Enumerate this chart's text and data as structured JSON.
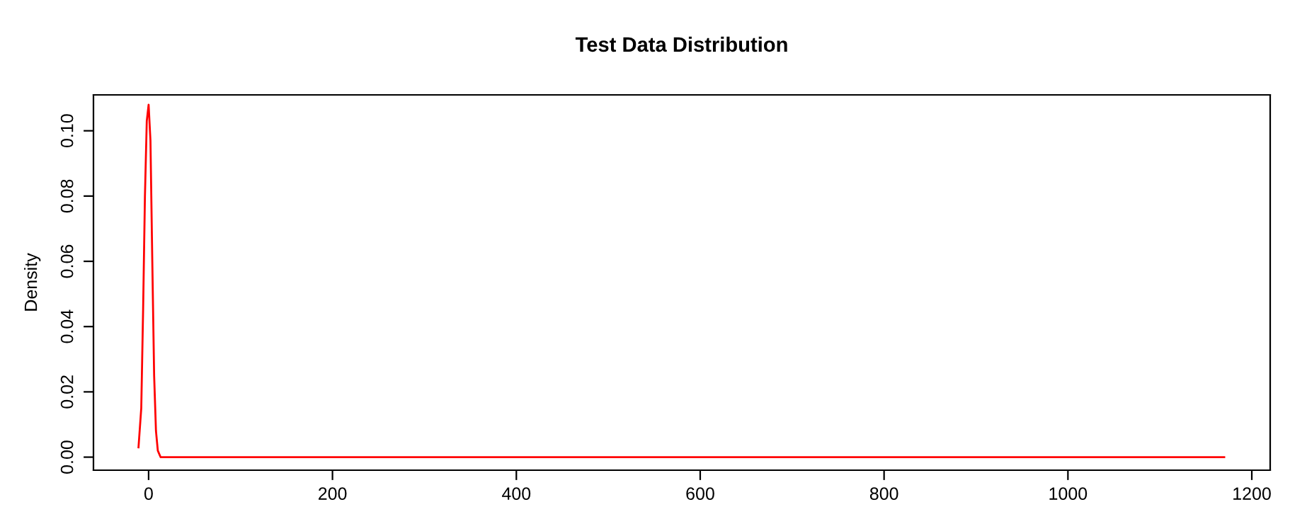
{
  "chart_data": {
    "type": "line",
    "title": "Test Data Distribution",
    "ylabel": "Density",
    "x": [
      -11,
      -8,
      -6,
      -4,
      -2,
      0,
      2,
      4,
      6,
      8,
      10,
      13,
      100,
      400,
      800,
      1170
    ],
    "series": [
      {
        "color": "#ff0000",
        "values": [
          0.003,
          0.015,
          0.045,
          0.08,
          0.103,
          0.108,
          0.097,
          0.06,
          0.025,
          0.008,
          0.002,
          0,
          0,
          0,
          0,
          0
        ]
      }
    ],
    "xlim": [
      -60,
      1220
    ],
    "ylim": [
      -0.004,
      0.111
    ],
    "xticks": [
      0,
      200,
      400,
      600,
      800,
      1000,
      1200
    ],
    "yticks": [
      {
        "value": 0,
        "label": "0.00"
      },
      {
        "value": 0.02,
        "label": "0.02"
      },
      {
        "value": 0.04,
        "label": "0.04"
      },
      {
        "value": 0.06,
        "label": "0.06"
      },
      {
        "value": 0.08,
        "label": "0.08"
      },
      {
        "value": 0.1,
        "label": "0.10"
      }
    ],
    "grid": false,
    "legend": false,
    "line_style": "solid",
    "marker": "none"
  }
}
